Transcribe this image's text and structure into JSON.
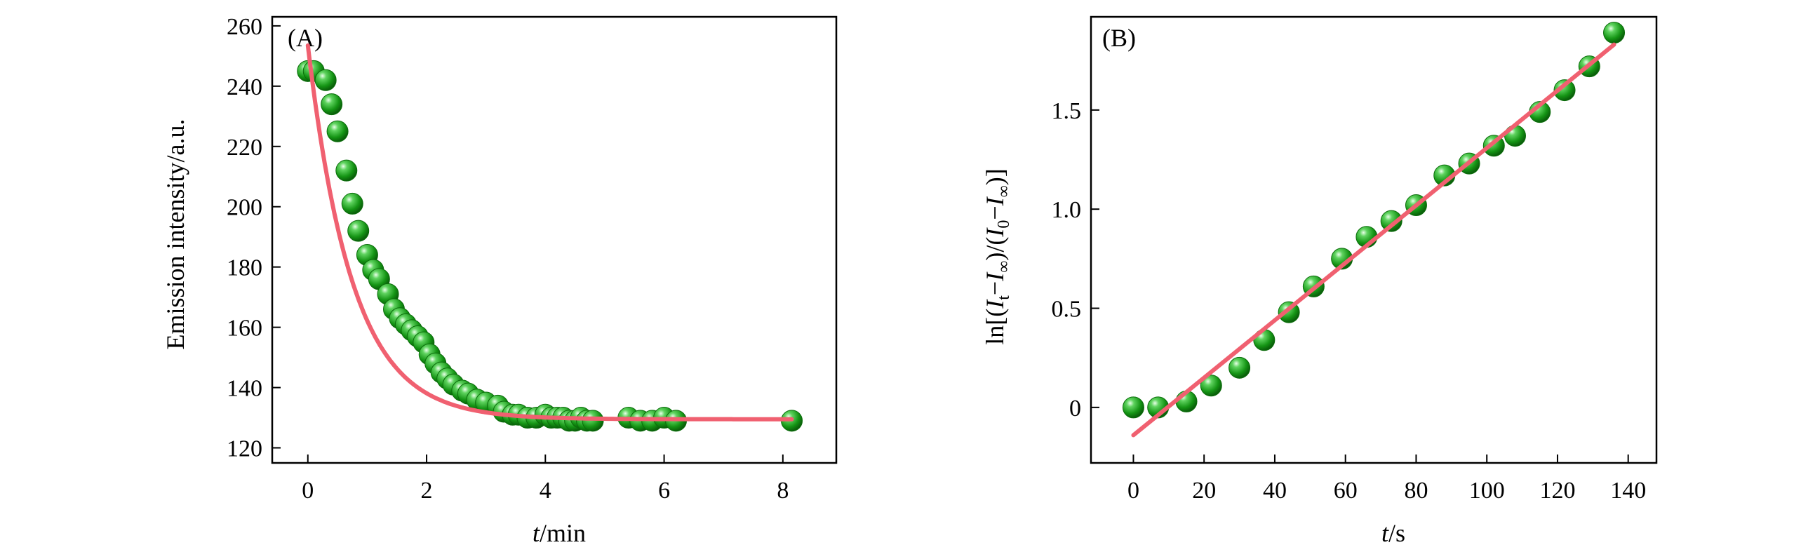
{
  "chart_data": [
    {
      "type": "scatter",
      "panel_label": "(A)",
      "xlabel": "t/min",
      "ylabel": "Emission intensity/a.u.",
      "xlim": [
        -0.6,
        8.9
      ],
      "ylim": [
        115,
        263
      ],
      "xticks": [
        0,
        2,
        4,
        6,
        8
      ],
      "yticks": [
        120,
        140,
        160,
        180,
        200,
        220,
        240,
        260
      ],
      "grid": false,
      "marker_color": "#1aa31a",
      "fit_color": "#f06070",
      "series": [
        {
          "kind": "points",
          "x": [
            0.0,
            0.1,
            0.3,
            0.4,
            0.5,
            0.65,
            0.75,
            0.85,
            1.0,
            1.1,
            1.2,
            1.35,
            1.45,
            1.55,
            1.65,
            1.75,
            1.85,
            1.95,
            2.05,
            2.15,
            2.25,
            2.35,
            2.45,
            2.6,
            2.7,
            2.85,
            3.0,
            3.2,
            3.3,
            3.45,
            3.55,
            3.7,
            3.85,
            4.0,
            4.1,
            4.2,
            4.3,
            4.4,
            4.5,
            4.6,
            4.7,
            4.8,
            5.4,
            5.6,
            5.8,
            6.0,
            6.2,
            8.15
          ],
          "y": [
            245,
            245,
            242,
            234,
            225,
            212,
            201,
            192,
            184,
            179,
            176,
            171,
            166,
            163,
            161,
            159,
            157,
            155,
            151,
            148,
            145,
            143,
            141,
            139,
            138,
            136,
            135,
            134,
            132,
            131,
            131,
            130,
            130,
            131,
            130,
            130,
            130,
            129,
            129,
            130,
            129,
            129,
            130,
            129,
            129,
            130,
            129,
            129
          ]
        },
        {
          "kind": "fit",
          "equation": "y = 129.5 + 124*exp(-x/0.75)"
        }
      ]
    },
    {
      "type": "scatter",
      "panel_label": "(B)",
      "xlabel": "t/s",
      "ylabel": "ln[(It−I∞)/(I0−I∞)]",
      "xlim": [
        -12,
        148
      ],
      "ylim": [
        -0.28,
        1.97
      ],
      "xticks": [
        0,
        20,
        40,
        60,
        80,
        100,
        120,
        140
      ],
      "yticks": [
        0,
        0.5,
        1.0,
        1.5
      ],
      "ytick_labels": [
        "0",
        "0.5",
        "1.0",
        "1.5"
      ],
      "grid": false,
      "marker_color": "#1aa31a",
      "fit_color": "#f06070",
      "series": [
        {
          "kind": "points",
          "x": [
            0,
            7,
            15,
            22,
            30,
            37,
            44,
            51,
            59,
            66,
            73,
            80,
            88,
            95,
            102,
            108,
            115,
            122,
            129,
            136
          ],
          "y": [
            0.0,
            0.0,
            0.03,
            0.11,
            0.2,
            0.34,
            0.48,
            0.61,
            0.75,
            0.86,
            0.94,
            1.02,
            1.17,
            1.23,
            1.32,
            1.37,
            1.49,
            1.6,
            1.72,
            1.89
          ]
        },
        {
          "kind": "fit",
          "x": [
            0,
            136
          ],
          "y": [
            -0.14,
            1.83
          ]
        }
      ]
    }
  ]
}
